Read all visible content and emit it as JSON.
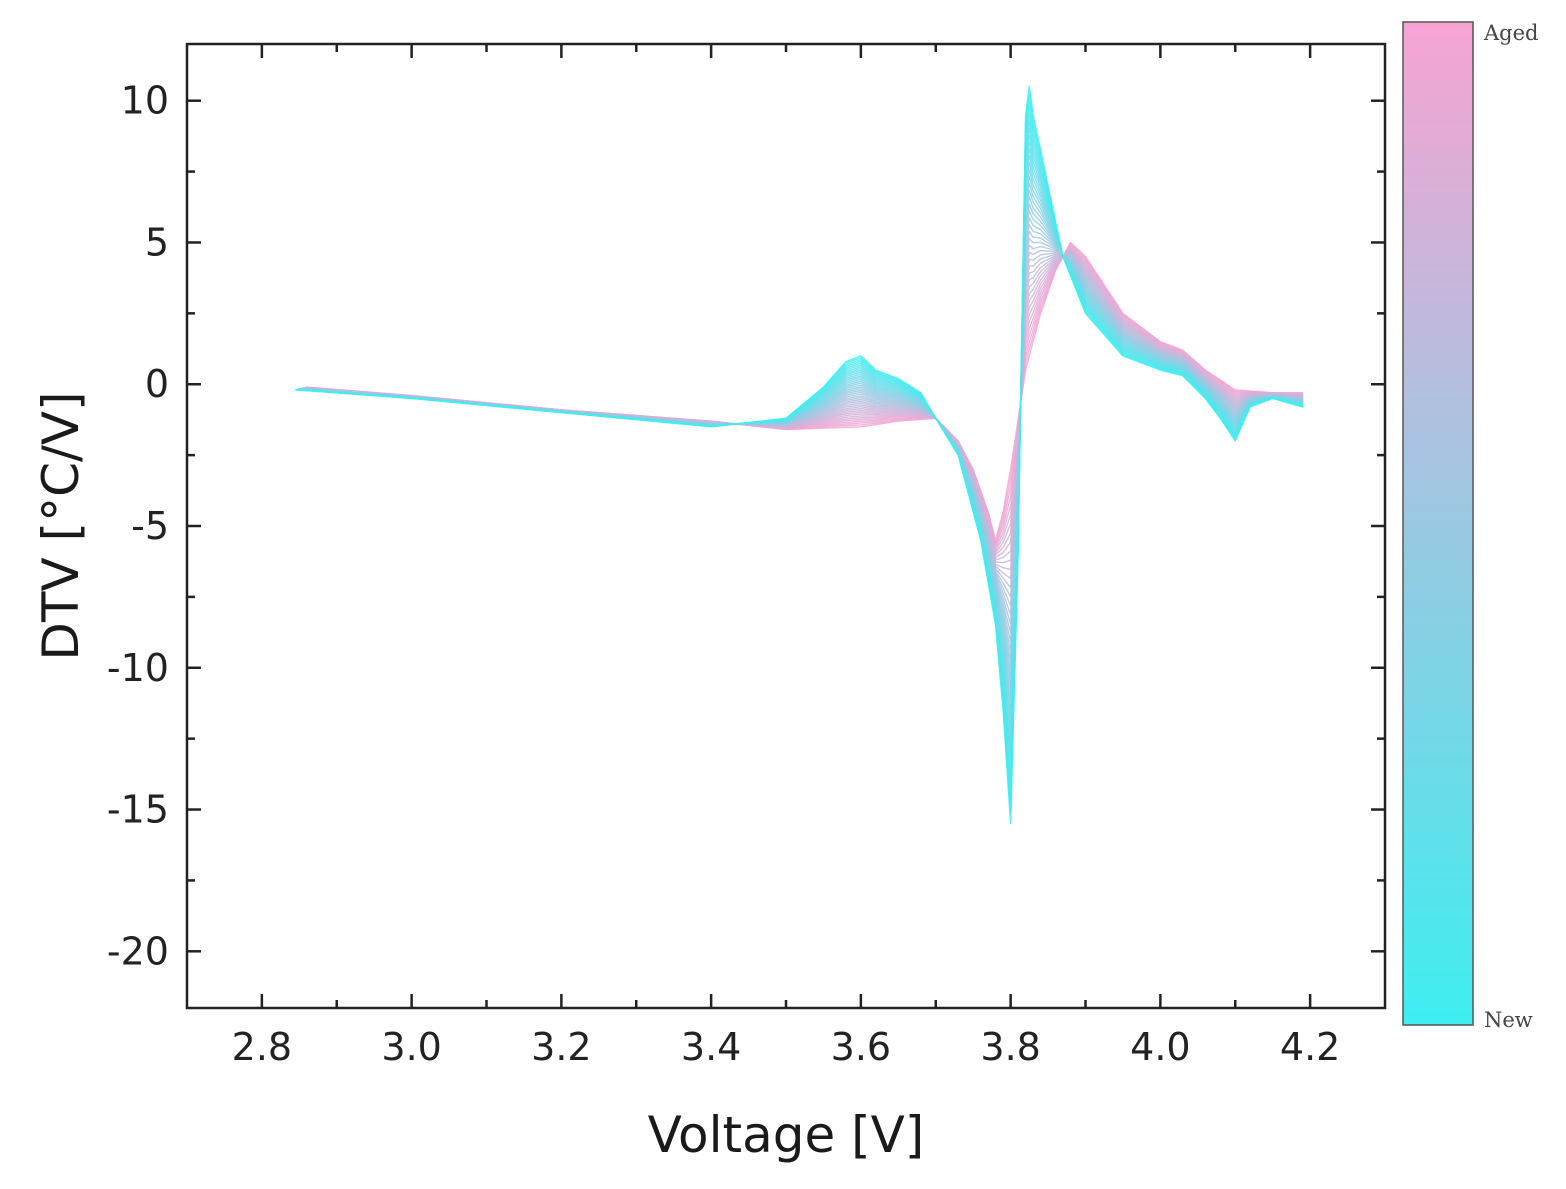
{
  "chart_data": {
    "type": "line",
    "title": "",
    "xlabel": "Voltage [V]",
    "ylabel": "DTV [°C/V]",
    "xlim": [
      2.7,
      4.3
    ],
    "ylim": [
      -22,
      12
    ],
    "xticks": [
      2.8,
      3.0,
      3.2,
      3.4,
      3.6,
      3.8,
      4.0,
      4.2
    ],
    "xtick_labels": [
      "2.8",
      "3.0",
      "3.2",
      "3.4",
      "3.6",
      "3.8",
      "4.0",
      "4.2"
    ],
    "yticks": [
      -20,
      -15,
      -10,
      -5,
      0,
      5,
      10
    ],
    "ytick_labels": [
      "-20",
      "-15",
      "-10",
      "-5",
      "0",
      "5",
      "10"
    ],
    "grid": false,
    "legend": "none",
    "colorbar": {
      "top_label": "Aged",
      "bottom_label": "New",
      "top_color": "#f7a3d3",
      "bottom_color": "#3deef0"
    },
    "series_count": 40,
    "series": [
      {
        "name": "New",
        "color": "#3deef0",
        "x": [
          2.845,
          3.0,
          3.2,
          3.4,
          3.5,
          3.55,
          3.58,
          3.6,
          3.62,
          3.65,
          3.68,
          3.7,
          3.73,
          3.76,
          3.78,
          3.79,
          3.8,
          3.81,
          3.815,
          3.82,
          3.825,
          3.83,
          3.85,
          3.87,
          3.9,
          3.95,
          4.0,
          4.03,
          4.06,
          4.08,
          4.1,
          4.12,
          4.15,
          4.19
        ],
        "y": [
          -0.2,
          -0.5,
          -1.0,
          -1.5,
          -1.2,
          -0.1,
          0.8,
          1.0,
          0.5,
          0.2,
          -0.3,
          -1.2,
          -2.5,
          -5.5,
          -8.5,
          -11.5,
          -15.5,
          -6.0,
          2.0,
          9.5,
          10.5,
          9.5,
          7.0,
          4.5,
          2.5,
          1.0,
          0.5,
          0.3,
          -0.5,
          -1.2,
          -2.0,
          -0.8,
          -0.5,
          -0.8
        ]
      },
      {
        "name": "Aged",
        "color": "#f7a3d3",
        "x": [
          2.86,
          3.0,
          3.2,
          3.4,
          3.5,
          3.6,
          3.65,
          3.7,
          3.73,
          3.75,
          3.77,
          3.78,
          3.79,
          3.8,
          3.82,
          3.84,
          3.86,
          3.88,
          3.9,
          3.95,
          4.0,
          4.03,
          4.06,
          4.1,
          4.15,
          4.19
        ],
        "y": [
          -0.1,
          -0.4,
          -0.9,
          -1.3,
          -1.6,
          -1.5,
          -1.3,
          -1.2,
          -2.0,
          -3.0,
          -4.5,
          -5.5,
          -4.5,
          -3.0,
          0.5,
          2.5,
          4.0,
          5.0,
          4.5,
          2.5,
          1.5,
          1.2,
          0.5,
          -0.2,
          -0.3,
          -0.3
        ]
      }
    ]
  }
}
